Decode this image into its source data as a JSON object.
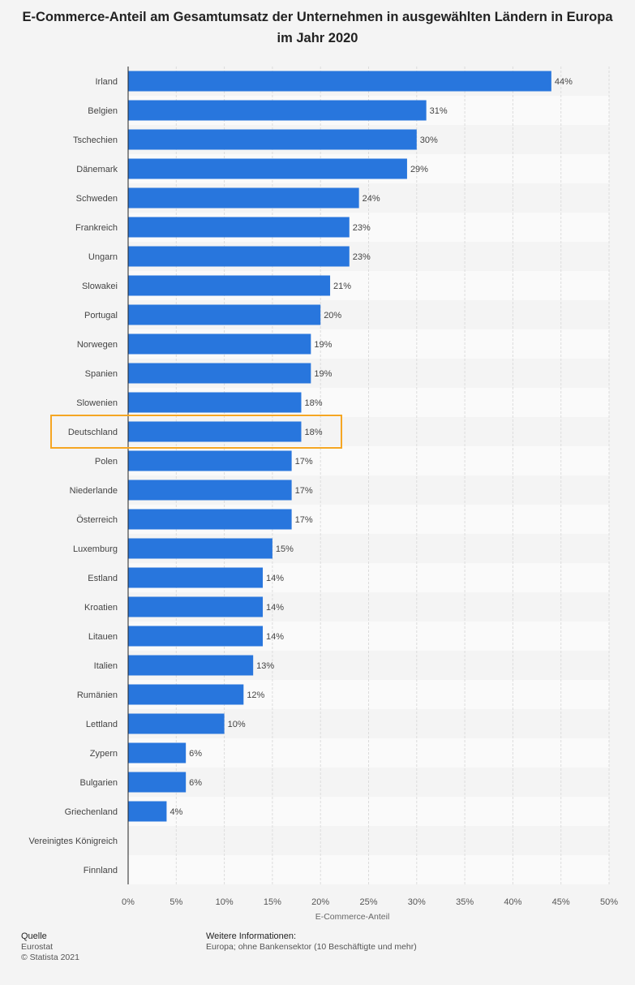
{
  "chart_data": {
    "type": "bar",
    "orientation": "horizontal",
    "title": "E-Commerce-Anteil am Gesamtumsatz der Unternehmen in ausgewählten Ländern in Europa im Jahr 2020",
    "xlabel": "E-Commerce-Anteil",
    "ylabel": "",
    "xlim": [
      0,
      50
    ],
    "ticks": [
      "0%",
      "5%",
      "10%",
      "15%",
      "20%",
      "25%",
      "30%",
      "35%",
      "40%",
      "45%",
      "50%"
    ],
    "grid": true,
    "bar_color": "#2876dd",
    "highlight_color": "#f5a623",
    "highlight_category": "Deutschland",
    "categories": [
      "Irland",
      "Belgien",
      "Tschechien",
      "Dänemark",
      "Schweden",
      "Frankreich",
      "Ungarn",
      "Slowakei",
      "Portugal",
      "Norwegen",
      "Spanien",
      "Slowenien",
      "Deutschland",
      "Polen",
      "Niederlande",
      "Österreich",
      "Luxemburg",
      "Estland",
      "Kroatien",
      "Litauen",
      "Italien",
      "Rumänien",
      "Lettland",
      "Zypern",
      "Bulgarien",
      "Griechenland",
      "Vereinigtes Königreich",
      "Finnland"
    ],
    "values": [
      44,
      31,
      30,
      29,
      24,
      23,
      23,
      21,
      20,
      19,
      19,
      18,
      18,
      17,
      17,
      17,
      15,
      14,
      14,
      14,
      13,
      12,
      10,
      6,
      6,
      4,
      null,
      null
    ],
    "value_labels": [
      "44%",
      "31%",
      "30%",
      "29%",
      "24%",
      "23%",
      "23%",
      "21%",
      "20%",
      "19%",
      "19%",
      "18%",
      "18%",
      "17%",
      "17%",
      "17%",
      "15%",
      "14%",
      "14%",
      "14%",
      "13%",
      "12%",
      "10%",
      "6%",
      "6%",
      "4%",
      "",
      ""
    ]
  },
  "footer": {
    "source_label": "Quelle",
    "source": "Eurostat",
    "copyright": "© Statista 2021",
    "info_label": "Weitere Informationen:",
    "info": "Europa; ohne Bankensektor (10 Beschäftigte und mehr)"
  }
}
